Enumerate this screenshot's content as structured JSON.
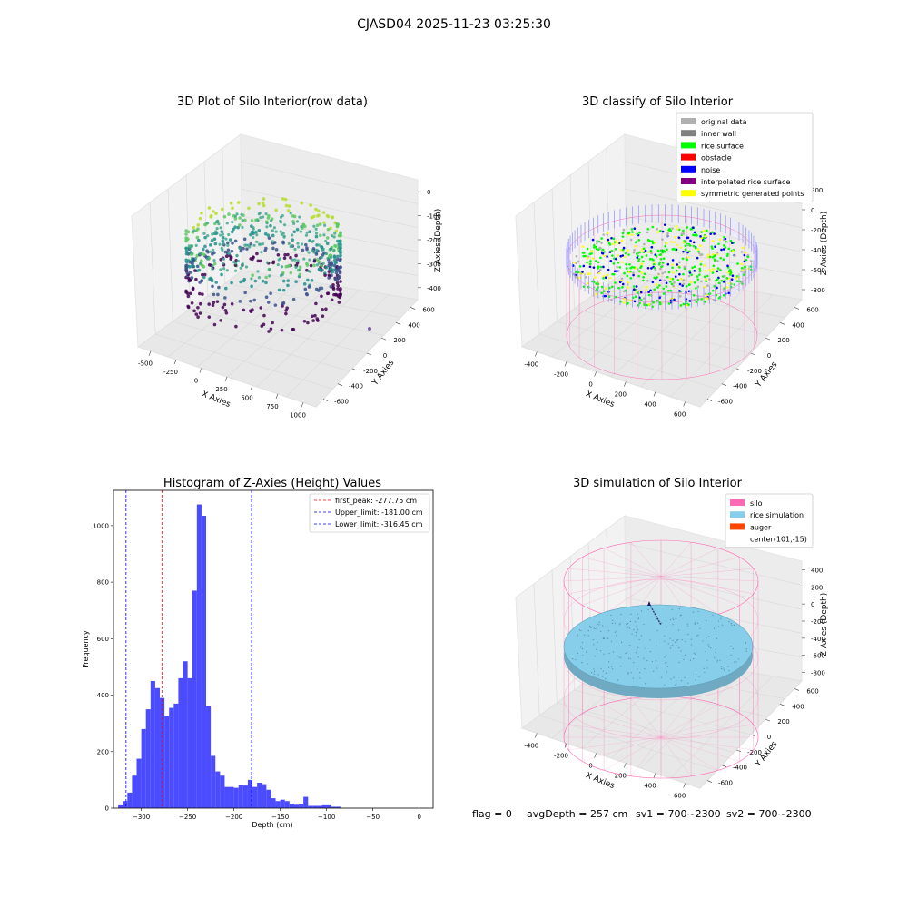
{
  "suptitle": "CJASD04 2025-11-23 03:25:30",
  "status_line": {
    "flag": "flag = 0",
    "avg_depth": "avgDepth = 257 cm",
    "sv1": "sv1 = 700~2300",
    "sv2": "sv2 = 700~2300"
  },
  "colors": {
    "hist_bar": "#4b4bff",
    "first_peak": "#ff0000",
    "limits": "#0000ff",
    "pane": "#f2f2f2",
    "grid": "#d9d9d9",
    "silo_wire": "#ff69b4",
    "rice_sim": "#87ceeb",
    "auger": "#ff4500"
  },
  "chart_data": [
    {
      "type": "scatter",
      "projection": "3d",
      "title": "3D Plot of Silo Interior(row data)",
      "xlabel": "X Axies",
      "ylabel": "Y Axies",
      "zlabel": "Z Axies (Depth)",
      "x_ticks": [
        "-500",
        "-250",
        "0",
        "250",
        "500",
        "750",
        "1000"
      ],
      "y_ticks": [
        "600",
        "400",
        "200",
        "0",
        "-200",
        "-400",
        "-600"
      ],
      "z_ticks": [
        "0",
        "-100",
        "-200",
        "-300",
        "-400"
      ],
      "colormap": "viridis",
      "grid": true
    },
    {
      "type": "scatter",
      "projection": "3d",
      "title": "3D classify of Silo Interior",
      "xlabel": "X Axies",
      "ylabel": "Y Axies",
      "zlabel": "Z Axies (Depth)",
      "x_ticks": [
        "-400",
        "-200",
        "0",
        "200",
        "400",
        "600"
      ],
      "y_ticks": [
        "600",
        "400",
        "200",
        "0",
        "-200",
        "-400",
        "-600"
      ],
      "z_ticks": [
        "200",
        "0",
        "-200",
        "-400",
        "-600",
        "-800"
      ],
      "legend_position": "top-right",
      "legend": [
        {
          "label": "original data",
          "color": "#b0b0b0"
        },
        {
          "label": "inner wall",
          "color": "#808080"
        },
        {
          "label": "rice surface",
          "color": "#00ff00"
        },
        {
          "label": "obstacle",
          "color": "#ff0000"
        },
        {
          "label": "noise",
          "color": "#0000ff"
        },
        {
          "label": "interpolated rice surface",
          "color": "#800080"
        },
        {
          "label": "symmetric generated points",
          "color": "#ffff00"
        }
      ],
      "grid": true
    },
    {
      "type": "bar",
      "title": "Histogram of Z-Axies (Height) Values",
      "xlabel": "Depth (cm)",
      "ylabel": "Frequency",
      "xlim": [
        -330,
        15
      ],
      "ylim": [
        0,
        1125
      ],
      "x_ticks": [
        -300,
        -250,
        -200,
        -150,
        -100,
        -50,
        0
      ],
      "y_ticks": [
        0,
        200,
        400,
        600,
        800,
        1000
      ],
      "bin_start": -325,
      "bin_width": 5,
      "values": [
        10,
        25,
        55,
        115,
        175,
        280,
        350,
        450,
        425,
        390,
        325,
        355,
        370,
        460,
        520,
        460,
        770,
        1075,
        1035,
        360,
        185,
        130,
        115,
        75,
        75,
        72,
        82,
        80,
        100,
        75,
        90,
        85,
        65,
        35,
        25,
        30,
        25,
        15,
        12,
        15,
        40,
        8,
        8,
        8,
        10,
        10,
        5,
        5
      ],
      "legend_position": "top-right",
      "annotations": [
        {
          "label": "first_peak: -277.75 cm",
          "x": -277.75,
          "color": "#ff0000"
        },
        {
          "label": "Upper_limit: -181.00 cm",
          "x": -181.0,
          "color": "#0000ff"
        },
        {
          "label": "Lower_limit: -316.45 cm",
          "x": -316.45,
          "color": "#0000ff"
        }
      ],
      "grid": false
    },
    {
      "type": "scatter",
      "projection": "3d",
      "title": "3D simulation of Silo Interior",
      "xlabel": "X Axies",
      "ylabel": "Y Axies",
      "zlabel": "Z Axies (Depth)",
      "x_ticks": [
        "-400",
        "-200",
        "0",
        "200",
        "400",
        "600"
      ],
      "y_ticks": [
        "600",
        "400",
        "200",
        "0",
        "-200",
        "-400",
        "-600"
      ],
      "z_ticks": [
        "400",
        "200",
        "0",
        "-200",
        "-400",
        "-600",
        "-800"
      ],
      "legend_position": "top-right",
      "legend": [
        {
          "label": "silo",
          "color": "#ff69b4"
        },
        {
          "label": "rice simulation",
          "color": "#87ceeb"
        },
        {
          "label": "auger",
          "color": "#ff4500"
        },
        {
          "label": "center(101,-15)",
          "color": ""
        }
      ],
      "grid": true
    }
  ]
}
